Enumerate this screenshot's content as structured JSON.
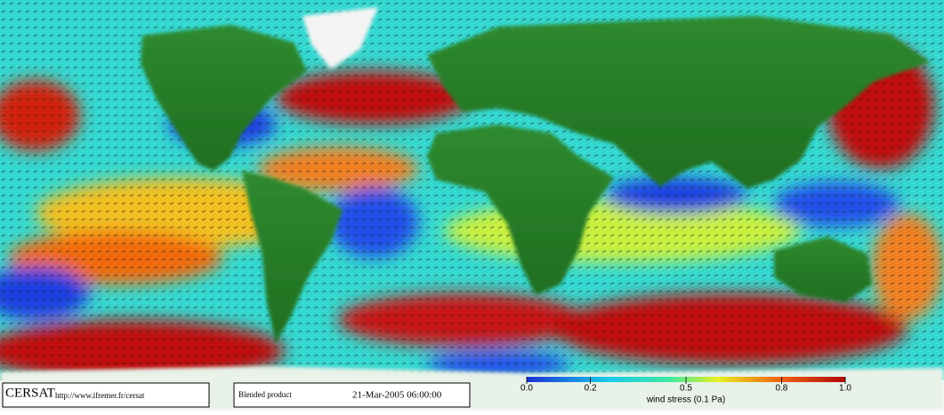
{
  "header": {
    "logo": "CERSAT",
    "url": "http://www.ifremer.fr/cersat"
  },
  "product": {
    "name": "Blended product",
    "timestamp": "21-Mar-2005 06:00:00"
  },
  "colorbar": {
    "lim": [
      0,
      1
    ],
    "ticks": [
      {
        "value": 0,
        "label": "0.0"
      },
      0.2,
      0.5,
      0.8,
      {
        "value": 1,
        "label": "1.0"
      }
    ],
    "label": "wind stress (0.1 Pa)"
  }
}
